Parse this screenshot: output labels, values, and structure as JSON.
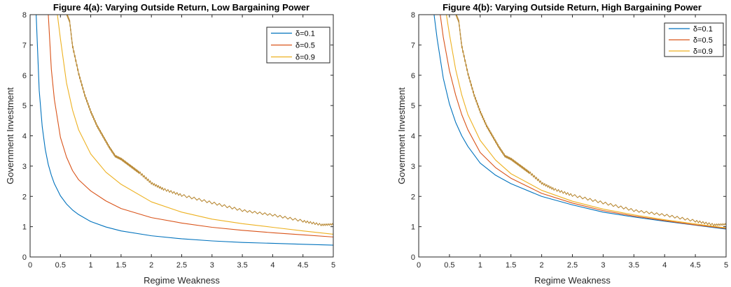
{
  "chart_data": [
    {
      "type": "line",
      "title": "Figure 4(a): Varying Outside Return, Low Bargaining Power",
      "xlabel": "Regime Weakness",
      "ylabel": "Government Investment",
      "xlim": [
        0,
        5
      ],
      "ylim": [
        0,
        8
      ],
      "xticks": [
        "0",
        "0.5",
        "1",
        "1.5",
        "2",
        "2.5",
        "3",
        "3.5",
        "4",
        "4.5",
        "5"
      ],
      "yticks": [
        "0",
        "1",
        "2",
        "3",
        "4",
        "5",
        "6",
        "7",
        "8"
      ],
      "legend_position": "top-right",
      "grid": false,
      "series": [
        {
          "name": "δ=0.1",
          "color": "#0072BD",
          "x": [
            0.1,
            0.15,
            0.2,
            0.25,
            0.3,
            0.35,
            0.4,
            0.5,
            0.6,
            0.7,
            0.8,
            1.0,
            1.25,
            1.5,
            2.0,
            2.5,
            3.0,
            3.5,
            4.0,
            4.5,
            5.0
          ],
          "y": [
            8.0,
            5.5,
            4.3,
            3.55,
            3.05,
            2.7,
            2.42,
            2.02,
            1.75,
            1.55,
            1.4,
            1.17,
            0.99,
            0.86,
            0.7,
            0.6,
            0.53,
            0.48,
            0.45,
            0.42,
            0.39
          ]
        },
        {
          "name": "δ=0.5",
          "color": "#D95319",
          "x": [
            0.3,
            0.35,
            0.4,
            0.5,
            0.6,
            0.7,
            0.8,
            1.0,
            1.25,
            1.5,
            2.0,
            2.5,
            3.0,
            3.5,
            4.0,
            4.5,
            5.0
          ],
          "y": [
            8.0,
            6.2,
            5.2,
            3.95,
            3.3,
            2.85,
            2.55,
            2.18,
            1.85,
            1.6,
            1.3,
            1.12,
            0.98,
            0.88,
            0.8,
            0.73,
            0.66
          ],
          "annotation": ""
        },
        {
          "name": "δ=0.9",
          "color": "#EDB120",
          "x": [
            0.45,
            0.5,
            0.6,
            0.7,
            0.8,
            1.0,
            1.25,
            1.5,
            2.0,
            2.5,
            3.0,
            3.5,
            4.0,
            4.5,
            5.0
          ],
          "y": [
            8.0,
            7.2,
            5.75,
            4.85,
            4.2,
            3.4,
            2.8,
            2.4,
            1.82,
            1.48,
            1.25,
            1.1,
            0.98,
            0.86,
            0.75
          ]
        }
      ],
      "unlabeled_series": [
        {
          "color": "#B98A36",
          "x": [
            0.6,
            0.65,
            0.7,
            0.8,
            0.9,
            1.0,
            1.1,
            1.2,
            1.3,
            1.4,
            1.5,
            1.6,
            1.7,
            1.8,
            2.0,
            2.2,
            2.5,
            3.0,
            3.5,
            4.0,
            4.5,
            4.8,
            5.0
          ],
          "y": [
            8.0,
            7.75,
            6.9,
            6.0,
            5.3,
            4.75,
            4.3,
            3.95,
            3.6,
            3.3,
            3.2,
            3.05,
            2.9,
            2.75,
            2.4,
            2.2,
            2.0,
            1.75,
            1.5,
            1.35,
            1.15,
            1.03,
            1.05
          ]
        }
      ]
    },
    {
      "type": "line",
      "title": "Figure 4(b): Varying Outside Return, High Bargaining Power",
      "xlabel": "Regime Weakness",
      "ylabel": "Government Investment",
      "xlim": [
        0,
        5
      ],
      "ylim": [
        0,
        8
      ],
      "xticks": [
        "0",
        "0.5",
        "1",
        "1.5",
        "2",
        "2.5",
        "3",
        "3.5",
        "4",
        "4.5",
        "5"
      ],
      "yticks": [
        "0",
        "1",
        "2",
        "3",
        "4",
        "5",
        "6",
        "7",
        "8"
      ],
      "legend_position": "top-right",
      "grid": false,
      "series": [
        {
          "name": "δ=0.1",
          "color": "#0072BD",
          "x": [
            0.25,
            0.3,
            0.4,
            0.5,
            0.6,
            0.7,
            0.8,
            1.0,
            1.25,
            1.5,
            2.0,
            2.5,
            3.0,
            3.5,
            4.0,
            4.5,
            5.0
          ],
          "y": [
            8.0,
            7.2,
            5.9,
            5.05,
            4.45,
            4.0,
            3.65,
            3.1,
            2.7,
            2.42,
            2.0,
            1.72,
            1.48,
            1.32,
            1.18,
            1.05,
            0.92
          ]
        },
        {
          "name": "δ=0.5",
          "color": "#D95319",
          "x": [
            0.35,
            0.4,
            0.5,
            0.6,
            0.7,
            0.8,
            1.0,
            1.25,
            1.5,
            2.0,
            2.5,
            3.0,
            3.5,
            4.0,
            4.5,
            5.0
          ],
          "y": [
            8.0,
            7.25,
            6.15,
            5.35,
            4.7,
            4.2,
            3.45,
            2.95,
            2.6,
            2.1,
            1.78,
            1.53,
            1.35,
            1.2,
            1.06,
            0.94
          ]
        },
        {
          "name": "δ=0.9",
          "color": "#EDB120",
          "x": [
            0.45,
            0.5,
            0.6,
            0.7,
            0.8,
            1.0,
            1.25,
            1.5,
            2.0,
            2.5,
            3.0,
            3.5,
            4.0,
            4.5,
            5.0
          ],
          "y": [
            8.0,
            7.35,
            6.2,
            5.35,
            4.7,
            3.85,
            3.2,
            2.75,
            2.2,
            1.84,
            1.58,
            1.39,
            1.23,
            1.09,
            0.96
          ]
        }
      ],
      "unlabeled_series": [
        {
          "color": "#B98A36",
          "x": [
            0.6,
            0.65,
            0.7,
            0.8,
            0.9,
            1.0,
            1.1,
            1.2,
            1.3,
            1.4,
            1.5,
            1.6,
            1.7,
            1.8,
            2.0,
            2.2,
            2.5,
            3.0,
            3.5,
            4.0,
            4.5,
            4.8,
            5.0
          ],
          "y": [
            8.0,
            7.75,
            6.9,
            6.0,
            5.3,
            4.75,
            4.3,
            3.95,
            3.6,
            3.3,
            3.2,
            3.05,
            2.9,
            2.75,
            2.4,
            2.2,
            2.0,
            1.75,
            1.5,
            1.35,
            1.15,
            1.03,
            1.05
          ]
        }
      ]
    }
  ]
}
